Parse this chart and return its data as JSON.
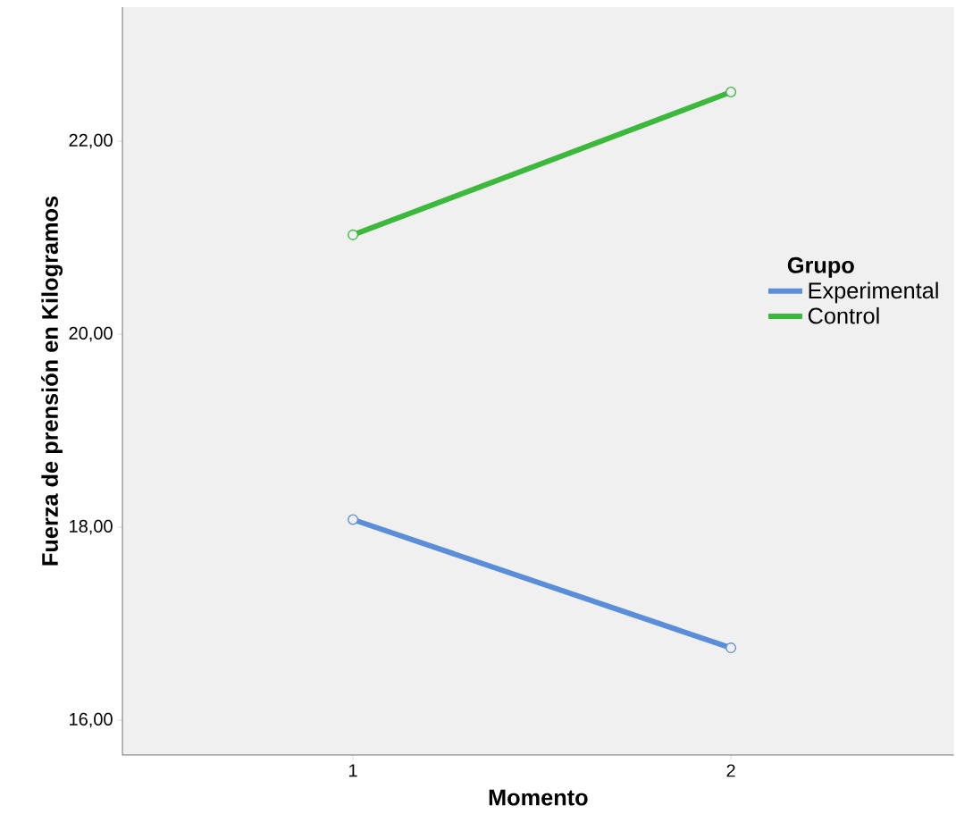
{
  "chart_data": {
    "type": "line",
    "xlabel": "Momento",
    "ylabel": "Fuerza de prensión en Kilogramos",
    "legend_title": "Grupo",
    "x": [
      1,
      2
    ],
    "xlim": [
      0.39,
      2.59
    ],
    "xticks": [
      1,
      2
    ],
    "ylim": [
      15.64,
      23.39
    ],
    "yticks": [
      {
        "value": 16,
        "label": "16,00"
      },
      {
        "value": 18,
        "label": "18,00"
      },
      {
        "value": 20,
        "label": "20,00"
      },
      {
        "value": 22,
        "label": "22,00"
      }
    ],
    "series": [
      {
        "name": "Experimental",
        "color": "#5b8ed8",
        "values": [
          18.08,
          16.75
        ]
      },
      {
        "name": "Control",
        "color": "#3cb83c",
        "values": [
          21.03,
          22.51
        ]
      }
    ],
    "marker": "circle",
    "legend": "right"
  }
}
